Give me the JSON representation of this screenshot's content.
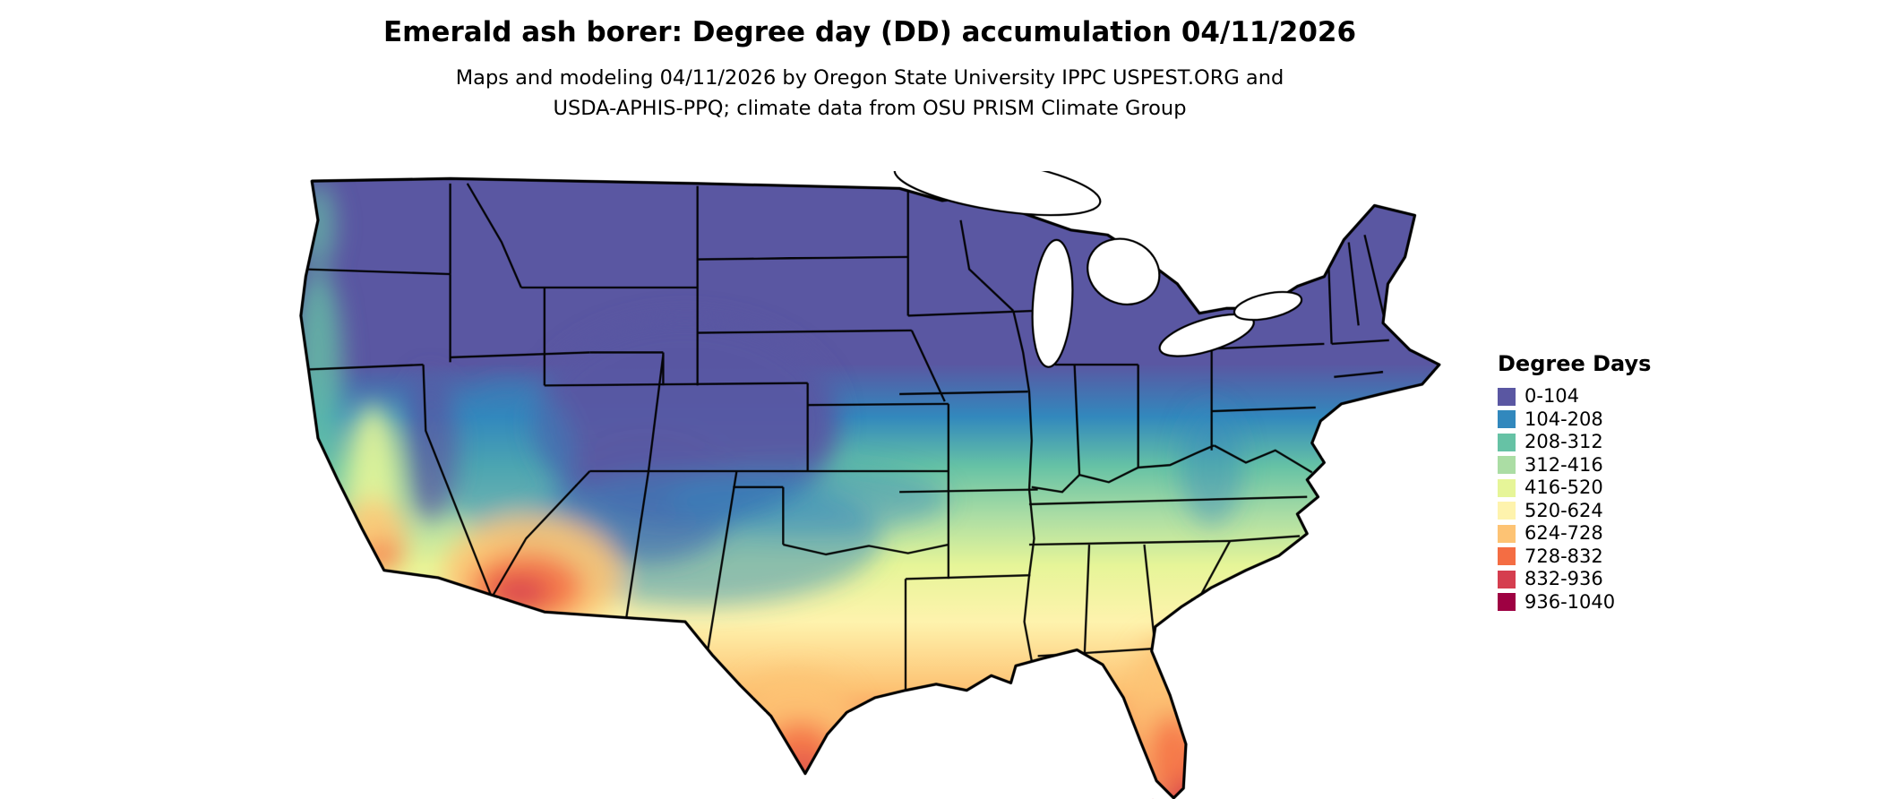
{
  "header": {
    "title": "Emerald ash borer: Degree day (DD) accumulation 04/11/2026",
    "subtitle_line1": "Maps and modeling 04/11/2026 by Oregon State University IPPC USPEST.ORG and",
    "subtitle_line2": "USDA-APHIS-PPQ; climate data from OSU PRISM Climate Group"
  },
  "legend": {
    "title": "Degree Days",
    "items": [
      {
        "label": "0-104",
        "color": "#5a57a2"
      },
      {
        "label": "104-208",
        "color": "#3288bd"
      },
      {
        "label": "208-312",
        "color": "#66c2a5"
      },
      {
        "label": "312-416",
        "color": "#abdda4"
      },
      {
        "label": "416-520",
        "color": "#e6f598"
      },
      {
        "label": "520-624",
        "color": "#fef3ad"
      },
      {
        "label": "624-728",
        "color": "#fdc374"
      },
      {
        "label": "728-832",
        "color": "#f46d43"
      },
      {
        "label": "832-936",
        "color": "#d53e4f"
      },
      {
        "label": "936-1040",
        "color": "#9e0142"
      }
    ]
  },
  "chart_data": {
    "type": "heatmap",
    "title": "Emerald ash borer: Degree day (DD) accumulation 04/11/2026",
    "date": "04/11/2026",
    "region": "Contiguous United States",
    "legend_title": "Degree Days",
    "bin_edges": [
      0,
      104,
      208,
      312,
      416,
      520,
      624,
      728,
      832,
      936,
      1040
    ],
    "bin_labels": [
      "0-104",
      "104-208",
      "208-312",
      "312-416",
      "416-520",
      "520-624",
      "624-728",
      "728-832",
      "832-936",
      "936-1040"
    ],
    "spatial_pattern": {
      "lowest_accumulation": "Northern states, Rocky Mountains, Sierra Nevada and New England (0-104 DD)",
      "mid_accumulation": "Central plains, mid-South and Southeast grade from 104-208 through 416-520 DD moving south",
      "highest_accumulation": "Southern Arizona / southeastern California deserts, southern Texas and southern Florida (728-1040 DD)"
    }
  }
}
